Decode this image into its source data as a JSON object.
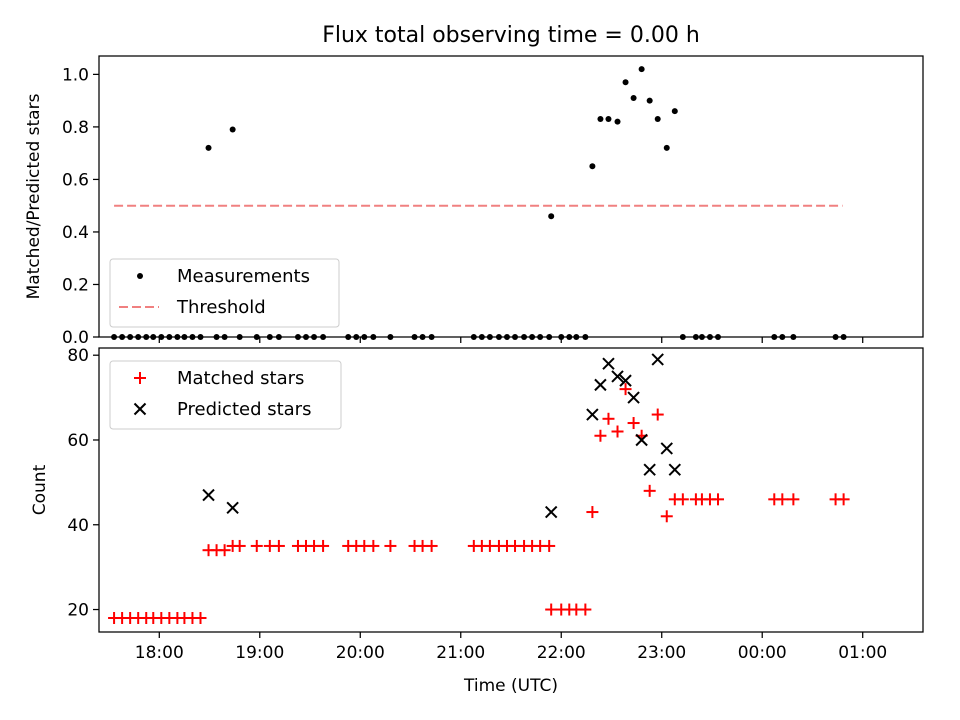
{
  "figure": {
    "title": "Flux total observing time = 0.00 h",
    "xlabel": "Time (UTC)"
  },
  "chart_data": [
    {
      "type": "scatter",
      "name": "ratio-panel",
      "ylabel": "Matched/Predicted stars",
      "xlim": [
        -0.6,
        7.6
      ],
      "ylim": [
        0.0,
        1.07
      ],
      "yticks": [
        0.0,
        0.2,
        0.4,
        0.6,
        0.8,
        1.0
      ],
      "ytick_labels": [
        "0.0",
        "0.2",
        "0.4",
        "0.6",
        "0.8",
        "1.0"
      ],
      "legend": {
        "placement": "lower-left",
        "entries": [
          {
            "label": "Measurements",
            "marker": "dot",
            "color": "#000000"
          },
          {
            "label": "Threshold",
            "marker": "dashed-line",
            "color": "#f08080"
          }
        ]
      },
      "threshold": {
        "value": 0.5,
        "x": [
          -0.45,
          6.8
        ],
        "color": "#f08080"
      },
      "series": [
        {
          "name": "Measurements",
          "color": "#000000",
          "points": [
            [
              -0.45,
              0
            ],
            [
              -0.37,
              0
            ],
            [
              -0.29,
              0
            ],
            [
              -0.21,
              0
            ],
            [
              -0.13,
              0
            ],
            [
              -0.06,
              0
            ],
            [
              0.02,
              0
            ],
            [
              0.1,
              0
            ],
            [
              0.18,
              0
            ],
            [
              0.25,
              0
            ],
            [
              0.33,
              0
            ],
            [
              0.41,
              0
            ],
            [
              0.49,
              0.72
            ],
            [
              0.57,
              0
            ],
            [
              0.65,
              0
            ],
            [
              0.73,
              0.79
            ],
            [
              0.8,
              0
            ],
            [
              0.97,
              0
            ],
            [
              1.1,
              0
            ],
            [
              1.19,
              0
            ],
            [
              1.38,
              0
            ],
            [
              1.46,
              0
            ],
            [
              1.54,
              0
            ],
            [
              1.63,
              0
            ],
            [
              1.88,
              0
            ],
            [
              1.96,
              0
            ],
            [
              2.04,
              0
            ],
            [
              2.13,
              0
            ],
            [
              2.3,
              0
            ],
            [
              2.54,
              0
            ],
            [
              2.62,
              0
            ],
            [
              2.71,
              0
            ],
            [
              3.13,
              0
            ],
            [
              3.21,
              0
            ],
            [
              3.29,
              0
            ],
            [
              3.38,
              0
            ],
            [
              3.46,
              0
            ],
            [
              3.54,
              0
            ],
            [
              3.63,
              0
            ],
            [
              3.71,
              0
            ],
            [
              3.79,
              0
            ],
            [
              3.88,
              0
            ],
            [
              3.9,
              0.46
            ],
            [
              4.0,
              0
            ],
            [
              4.08,
              0
            ],
            [
              4.15,
              0
            ],
            [
              4.24,
              0
            ],
            [
              4.31,
              0.65
            ],
            [
              4.39,
              0.83
            ],
            [
              4.47,
              0.83
            ],
            [
              4.56,
              0.82
            ],
            [
              4.64,
              0.97
            ],
            [
              4.72,
              0.91
            ],
            [
              4.8,
              1.02
            ],
            [
              4.88,
              0.9
            ],
            [
              4.96,
              0.83
            ],
            [
              5.05,
              0.72
            ],
            [
              5.13,
              0.86
            ],
            [
              5.21,
              0
            ],
            [
              5.34,
              0
            ],
            [
              5.4,
              0
            ],
            [
              5.48,
              0
            ],
            [
              5.56,
              0
            ],
            [
              6.12,
              0
            ],
            [
              6.2,
              0
            ],
            [
              6.31,
              0
            ],
            [
              6.73,
              0
            ],
            [
              6.81,
              0
            ]
          ]
        }
      ]
    },
    {
      "type": "scatter",
      "name": "count-panel",
      "ylabel": "Count",
      "xlim": [
        -0.6,
        7.6
      ],
      "ylim": [
        14.7,
        81.7
      ],
      "yticks": [
        20,
        40,
        60,
        80
      ],
      "ytick_labels": [
        "20",
        "40",
        "60",
        "80"
      ],
      "xticks": [
        0,
        1,
        2,
        3,
        4,
        5,
        6,
        7
      ],
      "xtick_labels": [
        "18:00",
        "19:00",
        "20:00",
        "21:00",
        "22:00",
        "23:00",
        "00:00",
        "01:00"
      ],
      "legend": {
        "placement": "upper-left",
        "entries": [
          {
            "label": "Matched stars",
            "marker": "plus",
            "color": "#ff0000"
          },
          {
            "label": "Predicted stars",
            "marker": "x",
            "color": "#000000"
          }
        ]
      },
      "series": [
        {
          "name": "Matched stars",
          "color": "#ff0000",
          "points": [
            [
              -0.45,
              18
            ],
            [
              -0.37,
              18
            ],
            [
              -0.29,
              18
            ],
            [
              -0.21,
              18
            ],
            [
              -0.13,
              18
            ],
            [
              -0.06,
              18
            ],
            [
              0.02,
              18
            ],
            [
              0.1,
              18
            ],
            [
              0.18,
              18
            ],
            [
              0.25,
              18
            ],
            [
              0.33,
              18
            ],
            [
              0.41,
              18
            ],
            [
              0.49,
              34
            ],
            [
              0.57,
              34
            ],
            [
              0.65,
              34
            ],
            [
              0.73,
              35
            ],
            [
              0.8,
              35
            ],
            [
              0.97,
              35
            ],
            [
              1.1,
              35
            ],
            [
              1.19,
              35
            ],
            [
              1.38,
              35
            ],
            [
              1.46,
              35
            ],
            [
              1.54,
              35
            ],
            [
              1.63,
              35
            ],
            [
              1.88,
              35
            ],
            [
              1.96,
              35
            ],
            [
              2.04,
              35
            ],
            [
              2.13,
              35
            ],
            [
              2.3,
              35
            ],
            [
              2.54,
              35
            ],
            [
              2.62,
              35
            ],
            [
              2.71,
              35
            ],
            [
              3.13,
              35
            ],
            [
              3.21,
              35
            ],
            [
              3.29,
              35
            ],
            [
              3.38,
              35
            ],
            [
              3.46,
              35
            ],
            [
              3.54,
              35
            ],
            [
              3.63,
              35
            ],
            [
              3.71,
              35
            ],
            [
              3.79,
              35
            ],
            [
              3.88,
              35
            ],
            [
              3.9,
              20
            ],
            [
              4.0,
              20
            ],
            [
              4.08,
              20
            ],
            [
              4.15,
              20
            ],
            [
              4.24,
              20
            ],
            [
              4.31,
              43
            ],
            [
              4.39,
              61
            ],
            [
              4.47,
              65
            ],
            [
              4.56,
              62
            ],
            [
              4.64,
              72
            ],
            [
              4.72,
              64
            ],
            [
              4.8,
              61
            ],
            [
              4.88,
              48
            ],
            [
              4.96,
              66
            ],
            [
              5.05,
              42
            ],
            [
              5.13,
              46
            ],
            [
              5.21,
              46
            ],
            [
              5.34,
              46
            ],
            [
              5.4,
              46
            ],
            [
              5.48,
              46
            ],
            [
              5.56,
              46
            ],
            [
              6.12,
              46
            ],
            [
              6.2,
              46
            ],
            [
              6.31,
              46
            ],
            [
              6.73,
              46
            ],
            [
              6.81,
              46
            ]
          ]
        },
        {
          "name": "Predicted stars",
          "color": "#000000",
          "points": [
            [
              0.49,
              47
            ],
            [
              0.73,
              44
            ],
            [
              3.9,
              43
            ],
            [
              4.31,
              66
            ],
            [
              4.39,
              73
            ],
            [
              4.47,
              78
            ],
            [
              4.56,
              75
            ],
            [
              4.64,
              74
            ],
            [
              4.72,
              70
            ],
            [
              4.8,
              60
            ],
            [
              4.88,
              53
            ],
            [
              4.96,
              79
            ],
            [
              5.05,
              58
            ],
            [
              5.13,
              53
            ]
          ]
        }
      ]
    }
  ]
}
